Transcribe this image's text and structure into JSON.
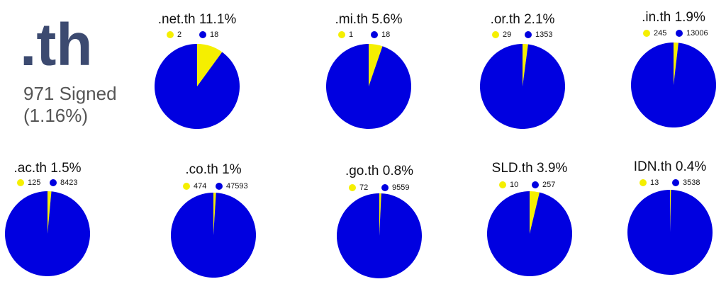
{
  "header": {
    "title": ".th",
    "subtitle": "971 Signed",
    "note": "(1.16%)"
  },
  "chart_data": [
    {
      "type": "pie",
      "title": ".net.th 11.1%",
      "values": [
        2,
        18
      ],
      "colors": [
        "#f5ef00",
        "#0000e0"
      ]
    },
    {
      "type": "pie",
      "title": ".mi.th 5.6%",
      "values": [
        1,
        18
      ],
      "colors": [
        "#f5ef00",
        "#0000e0"
      ]
    },
    {
      "type": "pie",
      "title": ".or.th 2.1%",
      "values": [
        29,
        1353
      ],
      "colors": [
        "#f5ef00",
        "#0000e0"
      ]
    },
    {
      "type": "pie",
      "title": ".in.th 1.9%",
      "values": [
        245,
        13006
      ],
      "colors": [
        "#f5ef00",
        "#0000e0"
      ]
    },
    {
      "type": "pie",
      "title": ".ac.th 1.5%",
      "values": [
        125,
        8423
      ],
      "colors": [
        "#f5ef00",
        "#0000e0"
      ]
    },
    {
      "type": "pie",
      "title": ".co.th 1%",
      "values": [
        474,
        47593
      ],
      "colors": [
        "#f5ef00",
        "#0000e0"
      ]
    },
    {
      "type": "pie",
      "title": ".go.th 0.8%",
      "values": [
        72,
        9559
      ],
      "colors": [
        "#f5ef00",
        "#0000e0"
      ]
    },
    {
      "type": "pie",
      "title": "SLD.th 3.9%",
      "values": [
        10,
        257
      ],
      "colors": [
        "#f5ef00",
        "#0000e0"
      ]
    },
    {
      "type": "pie",
      "title": "IDN.th 0.4%",
      "values": [
        13,
        3538
      ],
      "colors": [
        "#f5ef00",
        "#0000e0"
      ]
    }
  ]
}
